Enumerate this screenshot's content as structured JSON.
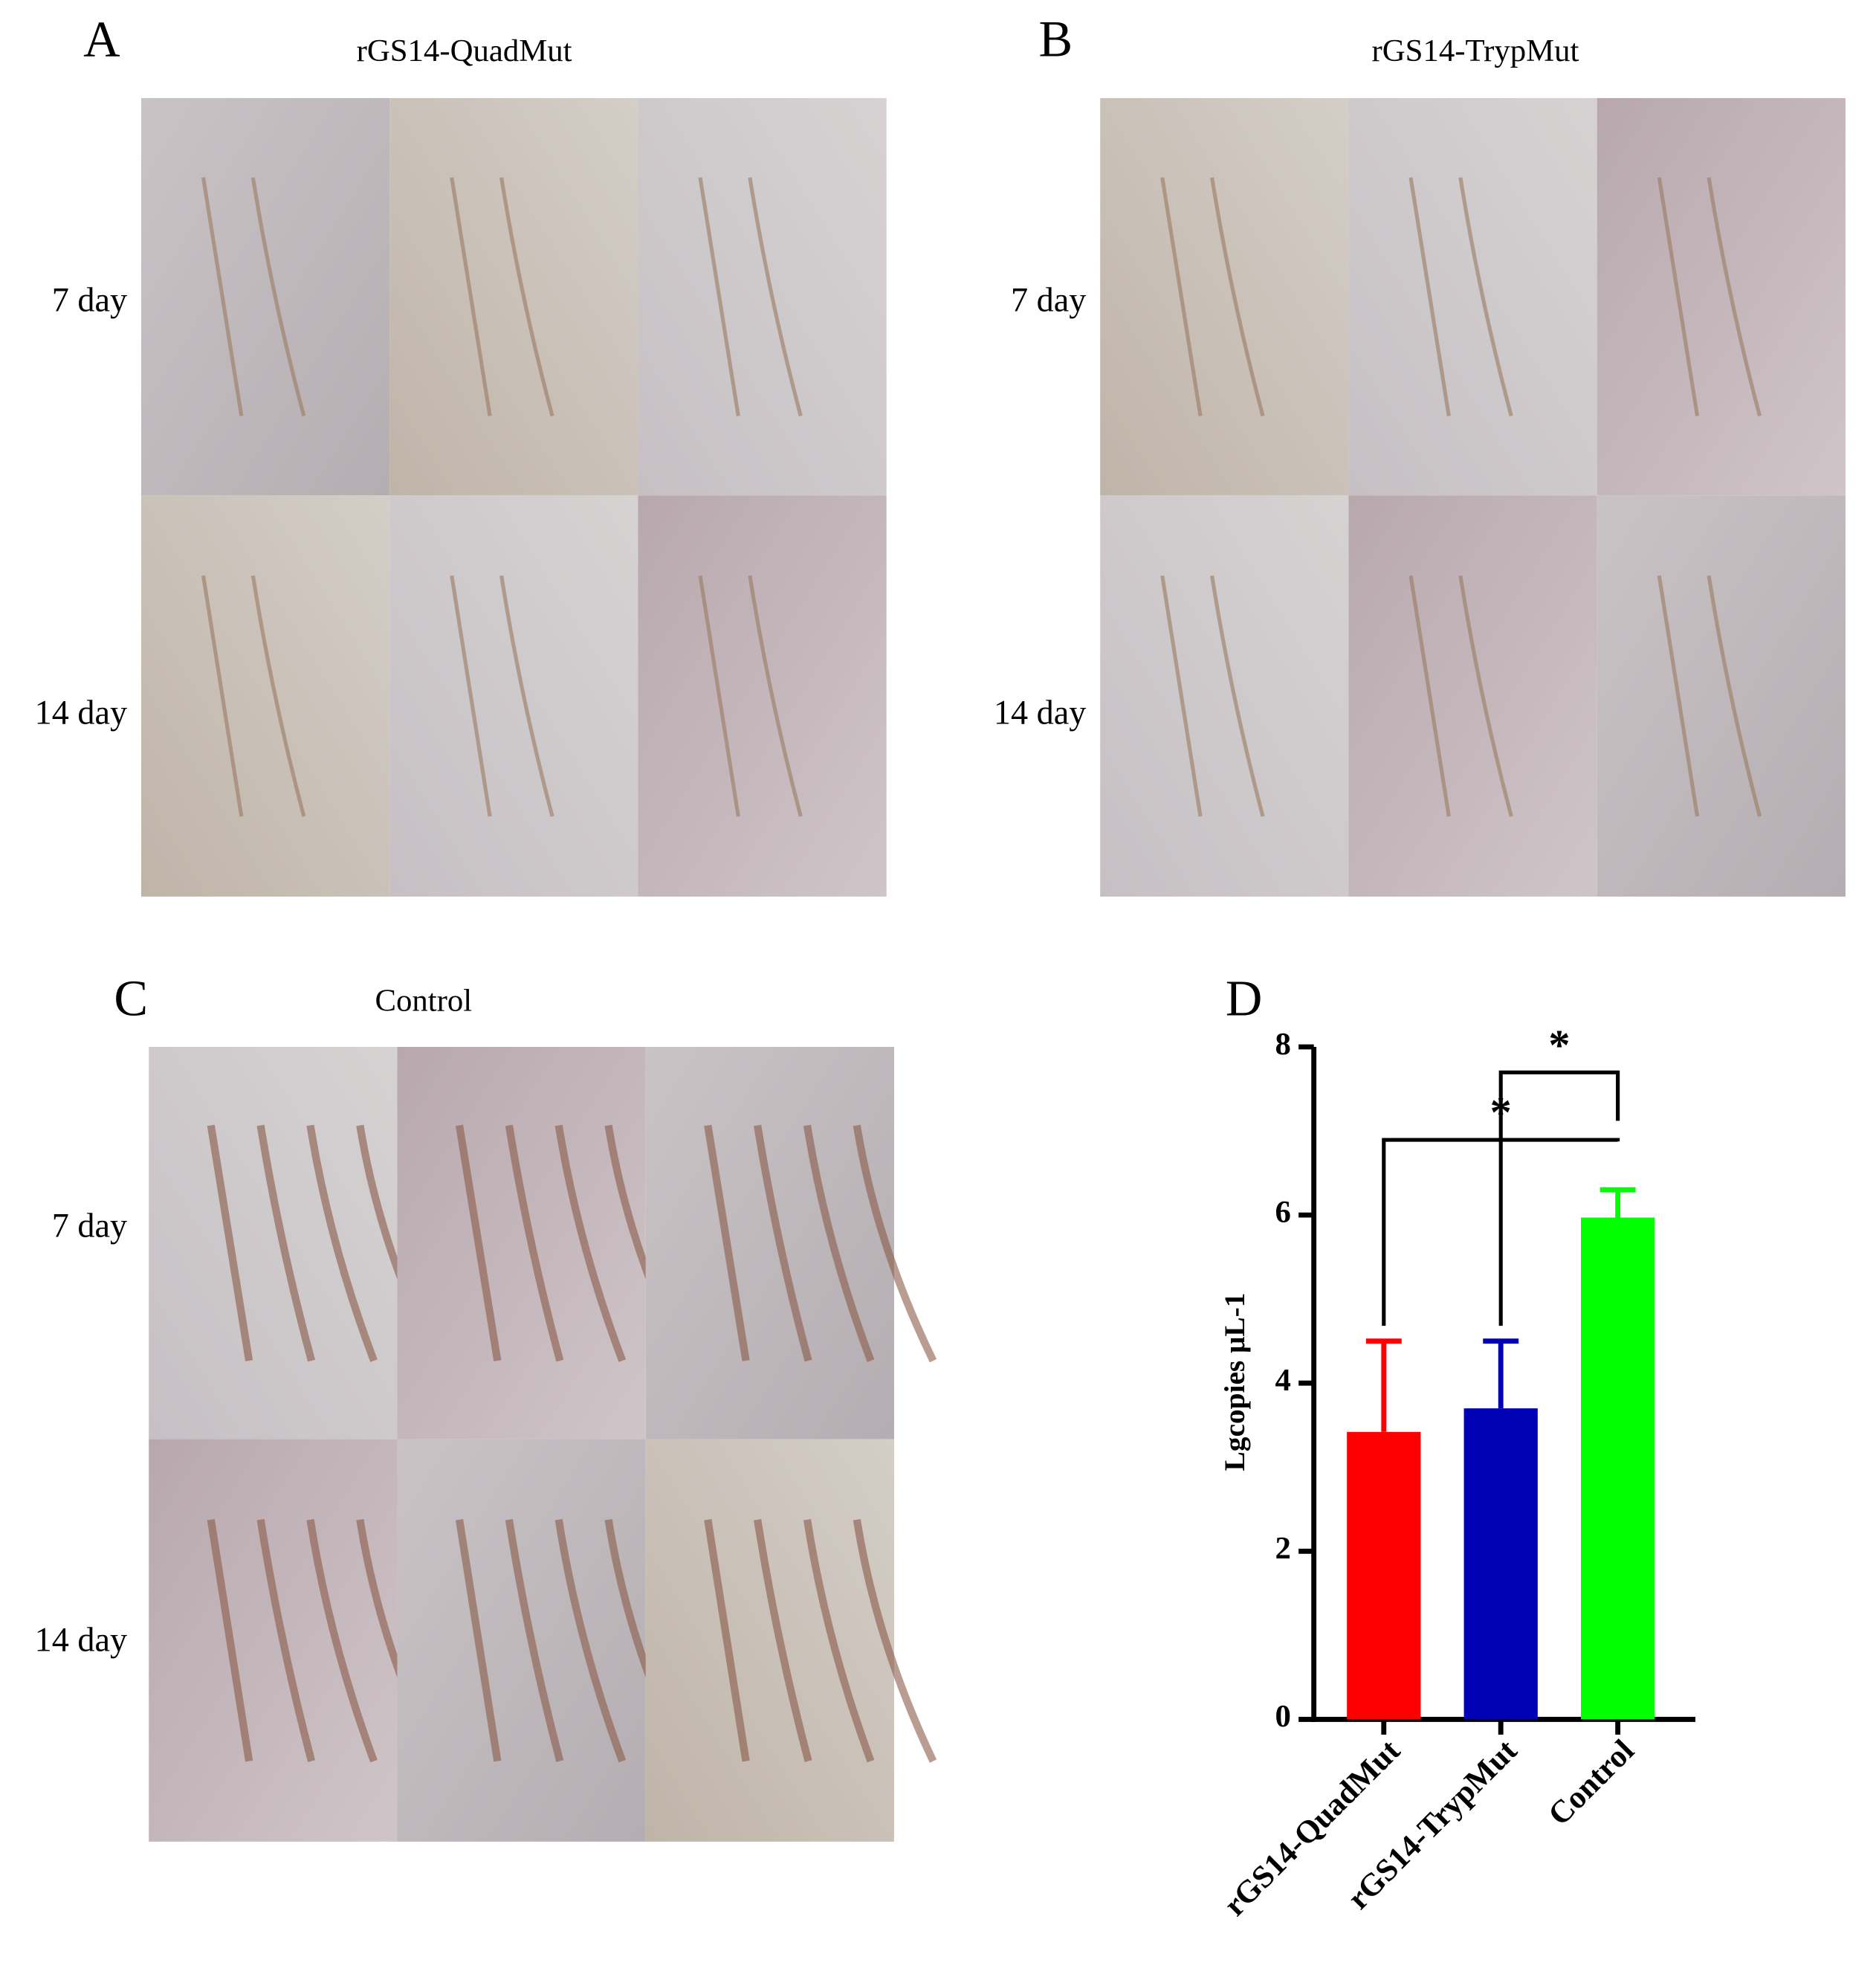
{
  "panels": [
    {
      "letter": "A",
      "title": "rGS14-QuadMut",
      "rows": [
        "7 day",
        "14 day"
      ]
    },
    {
      "letter": "B",
      "title": "rGS14-TrypMut",
      "rows": [
        "7 day",
        "14 day"
      ]
    },
    {
      "letter": "C",
      "title": "Control",
      "rows": [
        "7 day",
        "14 day"
      ]
    }
  ],
  "chart_data": {
    "type": "bar",
    "letter": "D",
    "y_label": "Lgcopies μL-1",
    "categories": [
      "rGS14-QuadMut",
      "rGS14-TrypMut",
      "Control"
    ],
    "values": [
      3.42,
      3.7,
      5.97
    ],
    "errors": [
      1.08,
      0.8,
      0.33
    ],
    "colors": [
      "#ff0000",
      "#0000b4",
      "#00ff00"
    ],
    "ylim": [
      0,
      8
    ],
    "yticks": [
      0,
      2,
      4,
      6,
      8
    ],
    "annotations": [
      {
        "from": "rGS14-QuadMut",
        "to": "Control",
        "label": "*"
      },
      {
        "from": "rGS14-TrypMut",
        "to": "Control",
        "label": "*"
      }
    ]
  }
}
